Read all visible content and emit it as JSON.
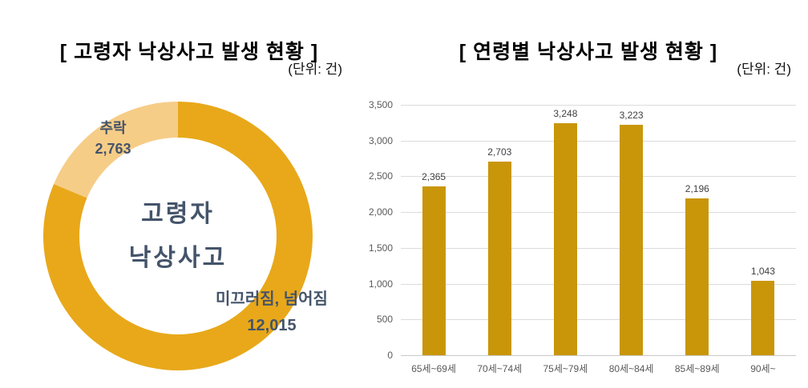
{
  "page": {
    "background": "#FFFFFF"
  },
  "chart_data": [
    {
      "type": "pie",
      "subtype": "donut",
      "title": "[ 고령자 낙상사고 발생 현황 ]",
      "unit_label": "(단위: 건)",
      "center_lines": [
        "고령자",
        "낙상사고"
      ],
      "slices": [
        {
          "label": "미끄러짐, 넘어짐",
          "value": 12015,
          "value_label": "12,015",
          "color": "#E8A81A"
        },
        {
          "label": "추락",
          "value": 2763,
          "value_label": "2,763",
          "color": "#F6CD87"
        }
      ],
      "start_angle_deg": 0,
      "hole_ratio": 0.73,
      "label_color": "#44546A",
      "legend": "none"
    },
    {
      "type": "bar",
      "title": "[ 연령별 낙상사고 발생 현황 ]",
      "unit_label": "(단위: 건)",
      "categories": [
        "65세~69세",
        "70세~74세",
        "75세~79세",
        "80세~84세",
        "85세~89세",
        "90세~"
      ],
      "values": [
        2365,
        2703,
        3248,
        3223,
        2196,
        1043
      ],
      "value_labels": [
        "2,365",
        "2,703",
        "3,248",
        "3,223",
        "2,196",
        "1,043"
      ],
      "xlabel": "",
      "ylabel": "",
      "ylim": [
        0,
        3500
      ],
      "ytick_step": 500,
      "ytick_labels": [
        "0",
        "500",
        "1,000",
        "1,500",
        "2,000",
        "2,500",
        "3,000",
        "3,500"
      ],
      "grid": true,
      "legend": "none",
      "bar_color": "#C9960A",
      "gridline_color": "#DCDCDC",
      "axis_label_color": "#595959",
      "value_label_color": "#404040"
    }
  ]
}
